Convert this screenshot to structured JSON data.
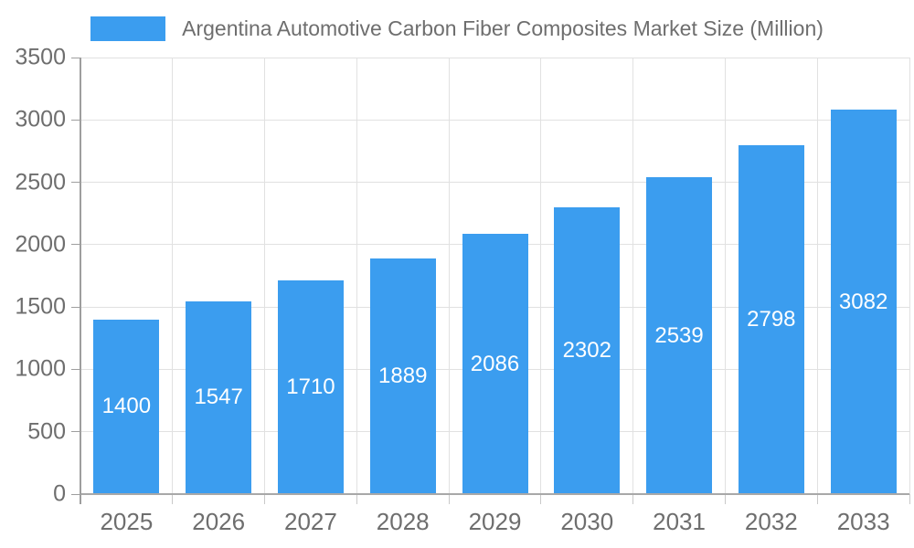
{
  "chart_data": {
    "type": "bar",
    "title": "Argentina Automotive Carbon Fiber Composites Market Size (Million)",
    "legend_label": "Argentina Automotive Carbon Fiber Composites Market Size (Million)",
    "legend_position": "top",
    "categories": [
      "2025",
      "2026",
      "2027",
      "2028",
      "2029",
      "2030",
      "2031",
      "2032",
      "2033"
    ],
    "values": [
      1400,
      1547,
      1710,
      1889,
      2086,
      2302,
      2539,
      2798,
      3082
    ],
    "xlabel": "",
    "ylabel": "",
    "ylim": [
      0,
      3500
    ],
    "yticks": [
      0,
      500,
      1000,
      1500,
      2000,
      2500,
      3000,
      3500
    ],
    "grid": true,
    "bar_labels_shown": true,
    "colors": {
      "bar": "#3B9DEF",
      "bar_label": "#FFFFFF",
      "axis_text": "#6E6E6E",
      "gridline": "#E1E1E1",
      "y_axis_line": "#9E9E9E",
      "x_axis_line": "#A8A8A8",
      "tick": "#C9C9C9"
    }
  }
}
